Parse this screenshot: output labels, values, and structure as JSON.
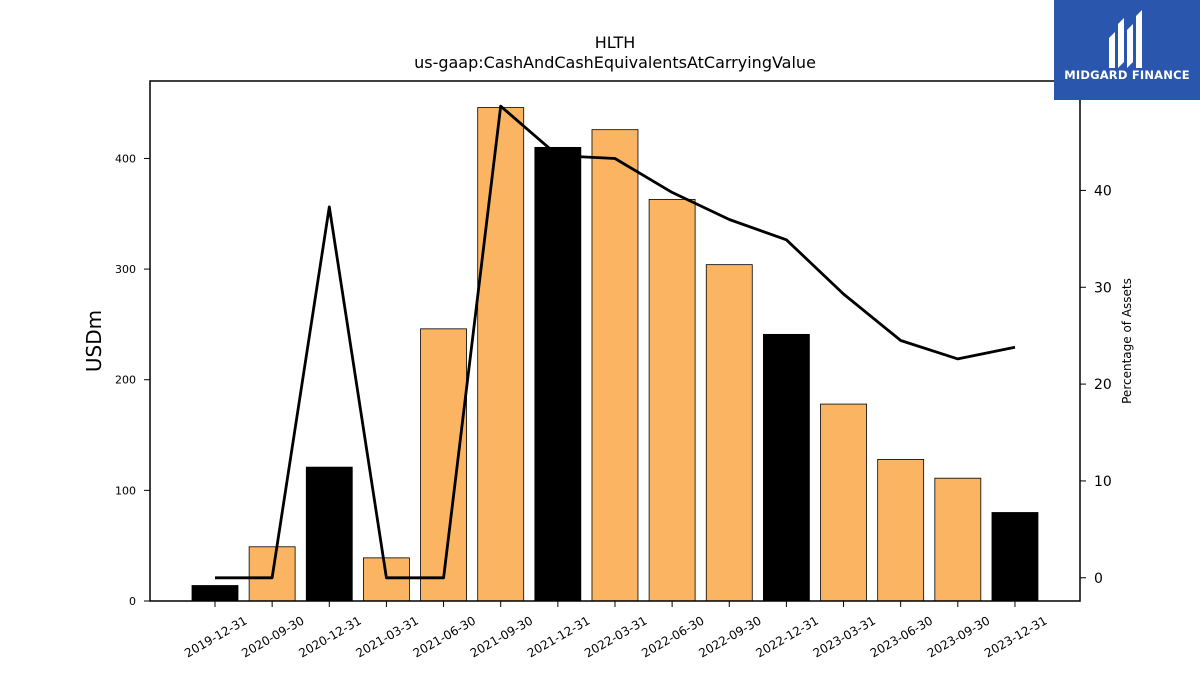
{
  "logo": {
    "text": "MIDGARD FINANCE",
    "bg_color": "#2a57ad"
  },
  "chart_data": {
    "type": "bar",
    "title": "HLTH",
    "subtitle": "us-gaap:CashAndCashEquivalentsAtCarryingValue",
    "ylabel": "USDm",
    "y2label": "Percentage of Assets",
    "ylim": [
      0,
      470
    ],
    "y2lim": [
      -2.4,
      51.3
    ],
    "yticks": [
      0,
      100,
      200,
      300,
      400
    ],
    "y2ticks": [
      0,
      10,
      20,
      30,
      40
    ],
    "categories": [
      "2019-12-31",
      "2020-09-30",
      "2020-12-31",
      "2021-03-31",
      "2021-06-30",
      "2021-09-30",
      "2021-12-31",
      "2022-03-31",
      "2022-06-30",
      "2022-09-30",
      "2022-12-31",
      "2023-03-31",
      "2023-06-30",
      "2023-09-30",
      "2023-12-31"
    ],
    "series": [
      {
        "axis": "left",
        "kind": "bar",
        "values": [
          14,
          49,
          121,
          39,
          246,
          446,
          410,
          426,
          363,
          304,
          241,
          178,
          128,
          111,
          80
        ],
        "colors": [
          "#000000",
          "#fbb462",
          "#000000",
          "#fbb462",
          "#fbb462",
          "#fbb462",
          "#000000",
          "#fbb462",
          "#fbb462",
          "#fbb462",
          "#000000",
          "#fbb462",
          "#fbb462",
          "#fbb462",
          "#000000"
        ]
      },
      {
        "axis": "right",
        "kind": "line",
        "color": "#000000",
        "values": [
          0,
          0,
          38.3,
          0,
          0,
          48.7,
          43.6,
          43.3,
          39.8,
          37.0,
          34.9,
          29.3,
          24.5,
          22.6,
          23.8
        ]
      }
    ],
    "grid": false,
    "legend": "none"
  }
}
